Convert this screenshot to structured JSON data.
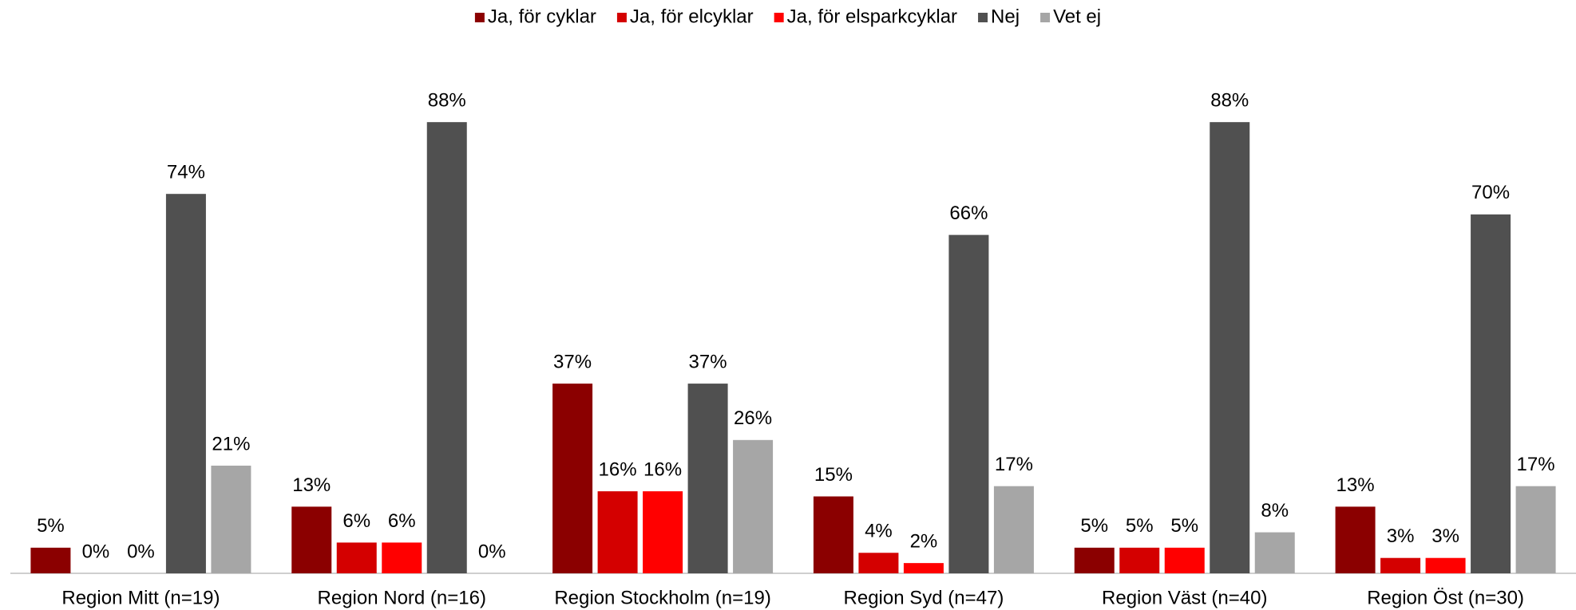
{
  "chart_data": {
    "type": "bar",
    "categories": [
      "Region  Mitt (n=19)",
      "Region Nord (n=16)",
      "Region Stockholm (n=19)",
      "Region Syd (n=47)",
      "Region Väst (n=40)",
      "Region Öst (n=30)"
    ],
    "series": [
      {
        "name": "Ja, för cyklar",
        "color": "#8b0000",
        "values": [
          5,
          13,
          37,
          15,
          5,
          13
        ],
        "value_labels": [
          "5%",
          "13%",
          "37%",
          "15%",
          "5%",
          "13%"
        ]
      },
      {
        "name": "Ja, för elcyklar",
        "color": "#d40000",
        "values": [
          0,
          6,
          16,
          4,
          5,
          3
        ],
        "value_labels": [
          "0%",
          "6%",
          "16%",
          "4%",
          "5%",
          "3%"
        ]
      },
      {
        "name": "Ja, för elsparkcyklar",
        "color": "#ff0000",
        "values": [
          0,
          6,
          16,
          2,
          5,
          3
        ],
        "value_labels": [
          "0%",
          "6%",
          "16%",
          "2%",
          "5%",
          "3%"
        ]
      },
      {
        "name": "Nej",
        "color": "#505050",
        "values": [
          74,
          88,
          37,
          66,
          88,
          70
        ],
        "value_labels": [
          "74%",
          "88%",
          "37%",
          "66%",
          "88%",
          "70%"
        ]
      },
      {
        "name": "Vet ej",
        "color": "#a6a6a6",
        "values": [
          21,
          0,
          26,
          17,
          8,
          17
        ],
        "value_labels": [
          "21%",
          "0%",
          "26%",
          "17%",
          "8%",
          "17%"
        ]
      }
    ],
    "ylim": [
      0,
      100
    ],
    "legend": "top"
  }
}
